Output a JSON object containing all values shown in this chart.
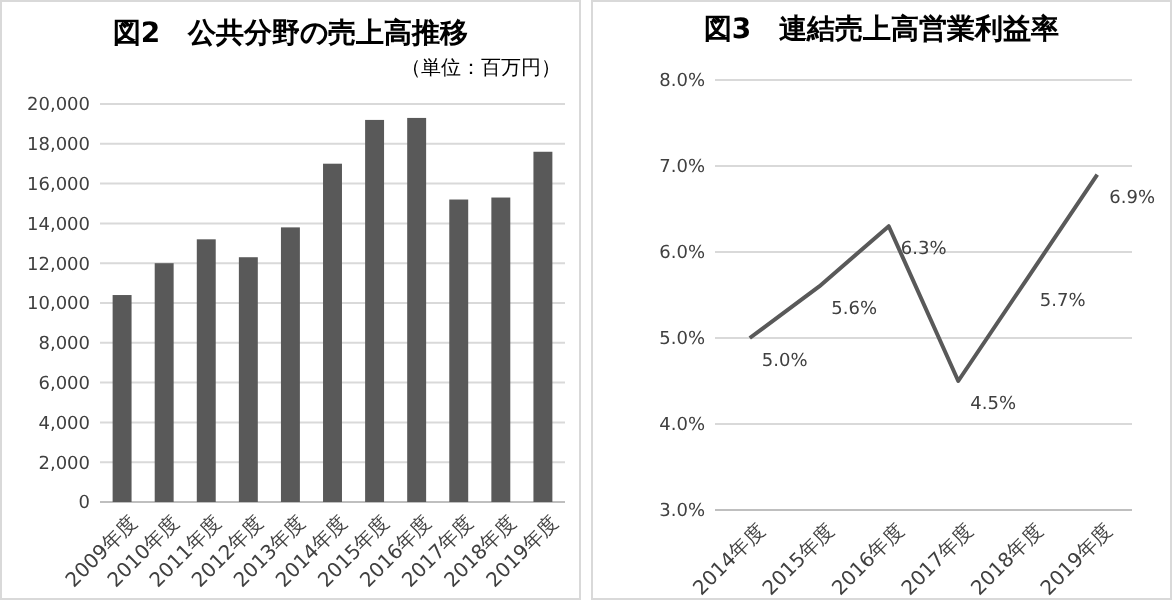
{
  "chart_data": [
    {
      "type": "bar",
      "title": "図2　公共分野の売上高推移",
      "subtitle": "（単位：百万円）",
      "categories": [
        "2009年度",
        "2010年度",
        "2011年度",
        "2012年度",
        "2013年度",
        "2014年度",
        "2015年度",
        "2016年度",
        "2017年度",
        "2018年度",
        "2019年度"
      ],
      "values": [
        10400,
        12000,
        13200,
        12300,
        13800,
        17000,
        19200,
        19300,
        15200,
        15300,
        17600
      ],
      "color": "#595959",
      "ylim": [
        0,
        20000
      ],
      "yticks": [
        {
          "value": 0,
          "label": "0"
        },
        {
          "value": 2000,
          "label": "2,000"
        },
        {
          "value": 4000,
          "label": "4,000"
        },
        {
          "value": 6000,
          "label": "6,000"
        },
        {
          "value": 8000,
          "label": "8,000"
        },
        {
          "value": 10000,
          "label": "10,000"
        },
        {
          "value": 12000,
          "label": "12,000"
        },
        {
          "value": 14000,
          "label": "14,000"
        },
        {
          "value": 16000,
          "label": "16,000"
        },
        {
          "value": 18000,
          "label": "18,000"
        },
        {
          "value": 20000,
          "label": "20,000"
        }
      ],
      "grid": "y"
    },
    {
      "type": "line",
      "title": "図3　連結売上高営業利益率",
      "categories": [
        "2014年度",
        "2015年度",
        "2016年度",
        "2017年度",
        "2018年度",
        "2019年度"
      ],
      "values": [
        5.0,
        5.6,
        6.3,
        4.5,
        5.7,
        6.9
      ],
      "value_labels": [
        "5.0%",
        "5.6%",
        "6.3%",
        "4.5%",
        "5.7%",
        "6.9%"
      ],
      "color": "#595959",
      "ylim": [
        3,
        8
      ],
      "yticks": [
        {
          "value": 3,
          "label": "3.0%"
        },
        {
          "value": 4,
          "label": "4.0%"
        },
        {
          "value": 5,
          "label": "5.0%"
        },
        {
          "value": 6,
          "label": "6.0%"
        },
        {
          "value": 7,
          "label": "7.0%"
        },
        {
          "value": 8,
          "label": "8.0%"
        }
      ],
      "grid": "y",
      "marker": "none",
      "line_style": "solid"
    }
  ]
}
